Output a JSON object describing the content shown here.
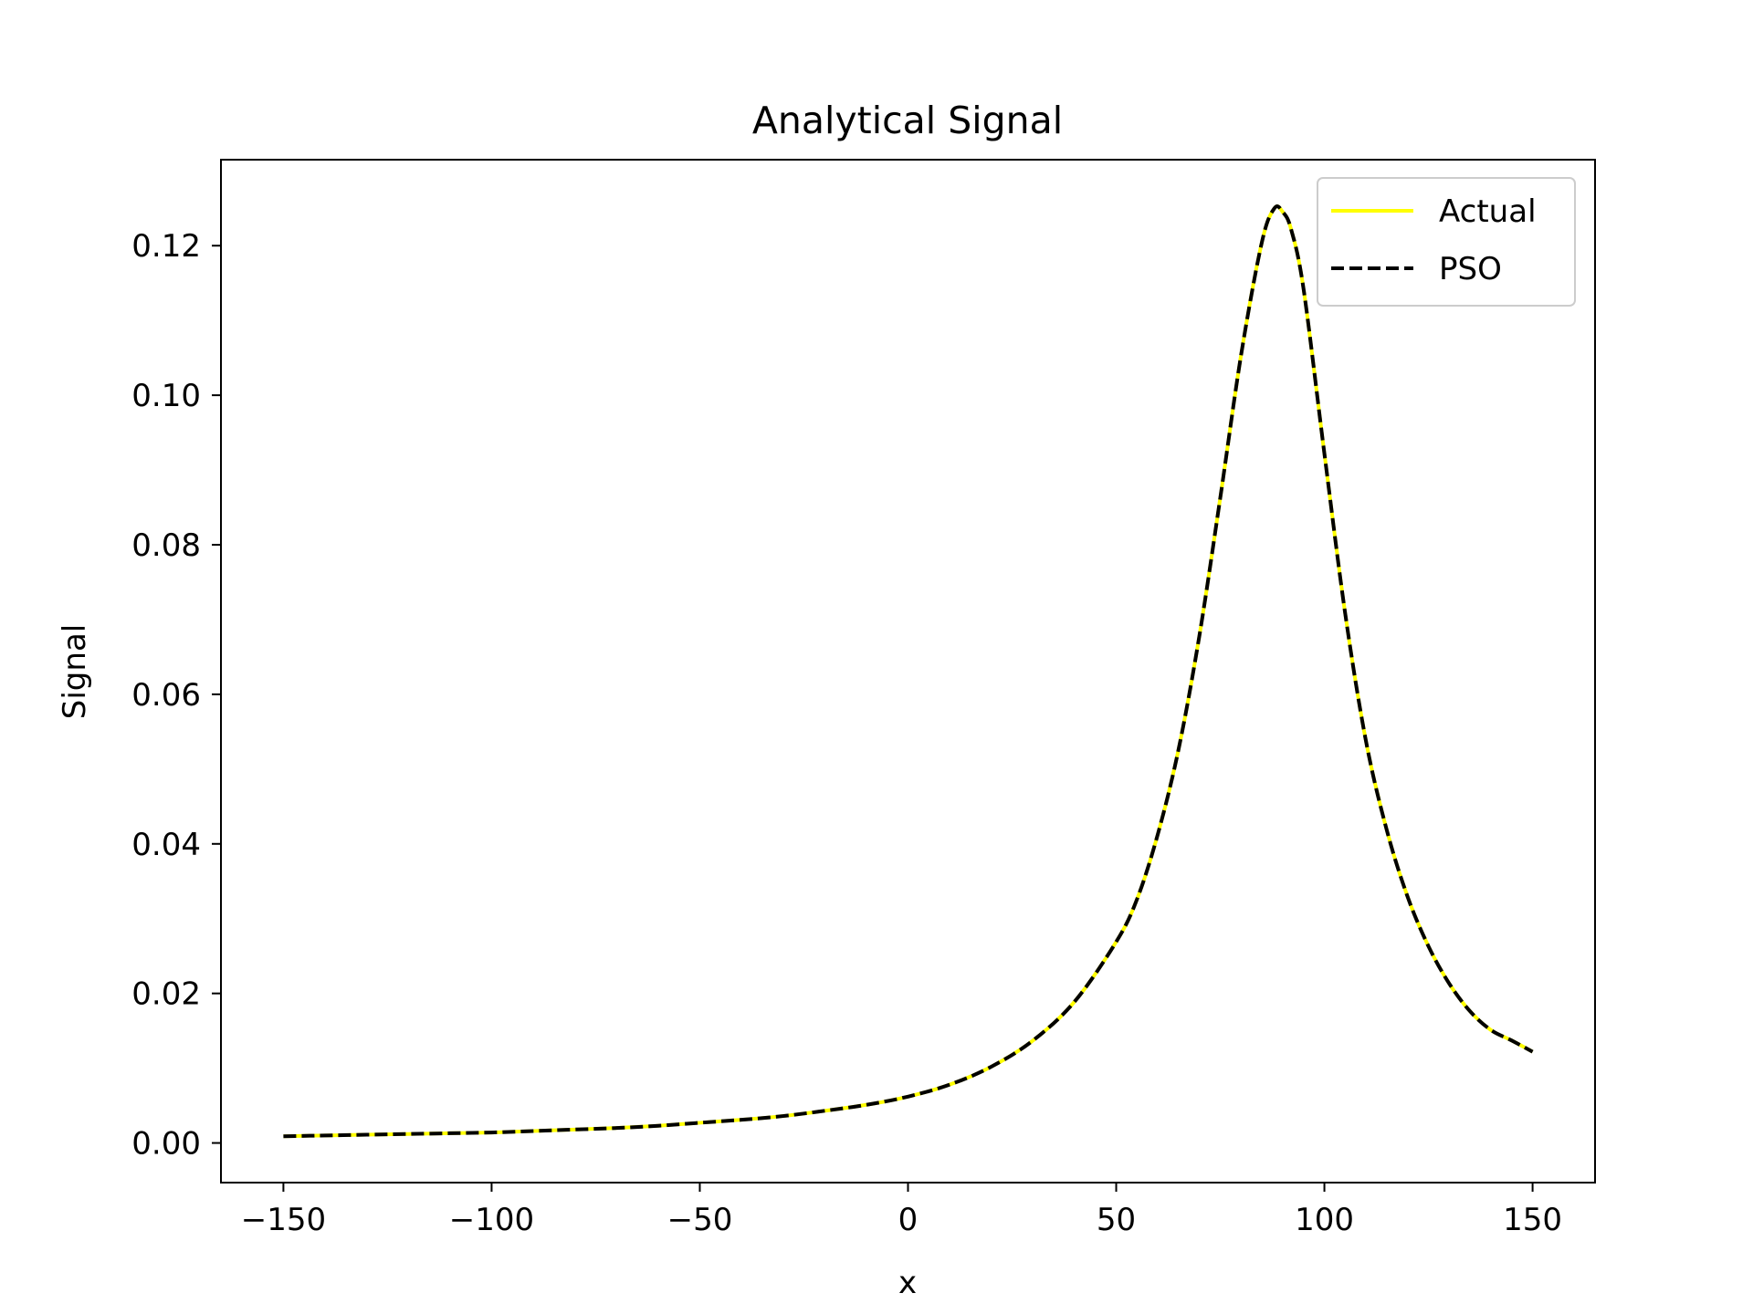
{
  "chart_data": {
    "type": "line",
    "title": "Analytical Signal",
    "xlabel": "x",
    "ylabel": "Signal",
    "xlim": [
      -165,
      165
    ],
    "ylim": [
      -0.0053,
      0.1315
    ],
    "xticks": [
      -150,
      -100,
      -50,
      0,
      50,
      100,
      150
    ],
    "xtick_labels": [
      "−150",
      "−100",
      "−50",
      "0",
      "50",
      "100",
      "150"
    ],
    "yticks": [
      0.0,
      0.02,
      0.04,
      0.06,
      0.08,
      0.1,
      0.12
    ],
    "ytick_labels": [
      "0.00",
      "0.02",
      "0.04",
      "0.06",
      "0.08",
      "0.10",
      "0.12"
    ],
    "grid": false,
    "legend_position": "top-right",
    "x": [
      -150,
      -140,
      -130,
      -120,
      -110,
      -100,
      -90,
      -80,
      -70,
      -60,
      -50,
      -40,
      -30,
      -20,
      -10,
      0,
      10,
      20,
      30,
      40,
      50,
      55,
      60,
      65,
      70,
      75,
      80,
      85,
      88,
      90,
      92,
      95,
      100,
      105,
      110,
      115,
      120,
      125,
      130,
      135,
      140,
      145,
      150
    ],
    "series": [
      {
        "name": "Actual",
        "color": "#ffff00",
        "style": "solid",
        "values": [
          0.0009,
          0.001,
          0.0011,
          0.0012,
          0.0013,
          0.0014,
          0.0016,
          0.0018,
          0.002,
          0.0023,
          0.0027,
          0.0031,
          0.0036,
          0.0043,
          0.0051,
          0.0062,
          0.0078,
          0.0102,
          0.0137,
          0.0189,
          0.0269,
          0.0326,
          0.0413,
          0.0527,
          0.0679,
          0.0863,
          0.1054,
          0.1205,
          0.125,
          0.1245,
          0.1222,
          0.1142,
          0.0922,
          0.0708,
          0.0537,
          0.0418,
          0.0329,
          0.0263,
          0.0213,
          0.0176,
          0.0151,
          0.0137,
          0.0122
        ]
      },
      {
        "name": "PSO",
        "color": "#000000",
        "style": "dashed",
        "values": [
          0.0009,
          0.001,
          0.0011,
          0.0012,
          0.0013,
          0.0014,
          0.0016,
          0.0018,
          0.002,
          0.0023,
          0.0027,
          0.0031,
          0.0036,
          0.0043,
          0.0051,
          0.0062,
          0.0078,
          0.0102,
          0.0137,
          0.0189,
          0.0269,
          0.0326,
          0.0413,
          0.0527,
          0.0679,
          0.0863,
          0.1054,
          0.1205,
          0.125,
          0.1245,
          0.1222,
          0.1142,
          0.0922,
          0.0708,
          0.0537,
          0.0418,
          0.0329,
          0.0263,
          0.0213,
          0.0176,
          0.0151,
          0.0137,
          0.0122
        ]
      }
    ]
  }
}
